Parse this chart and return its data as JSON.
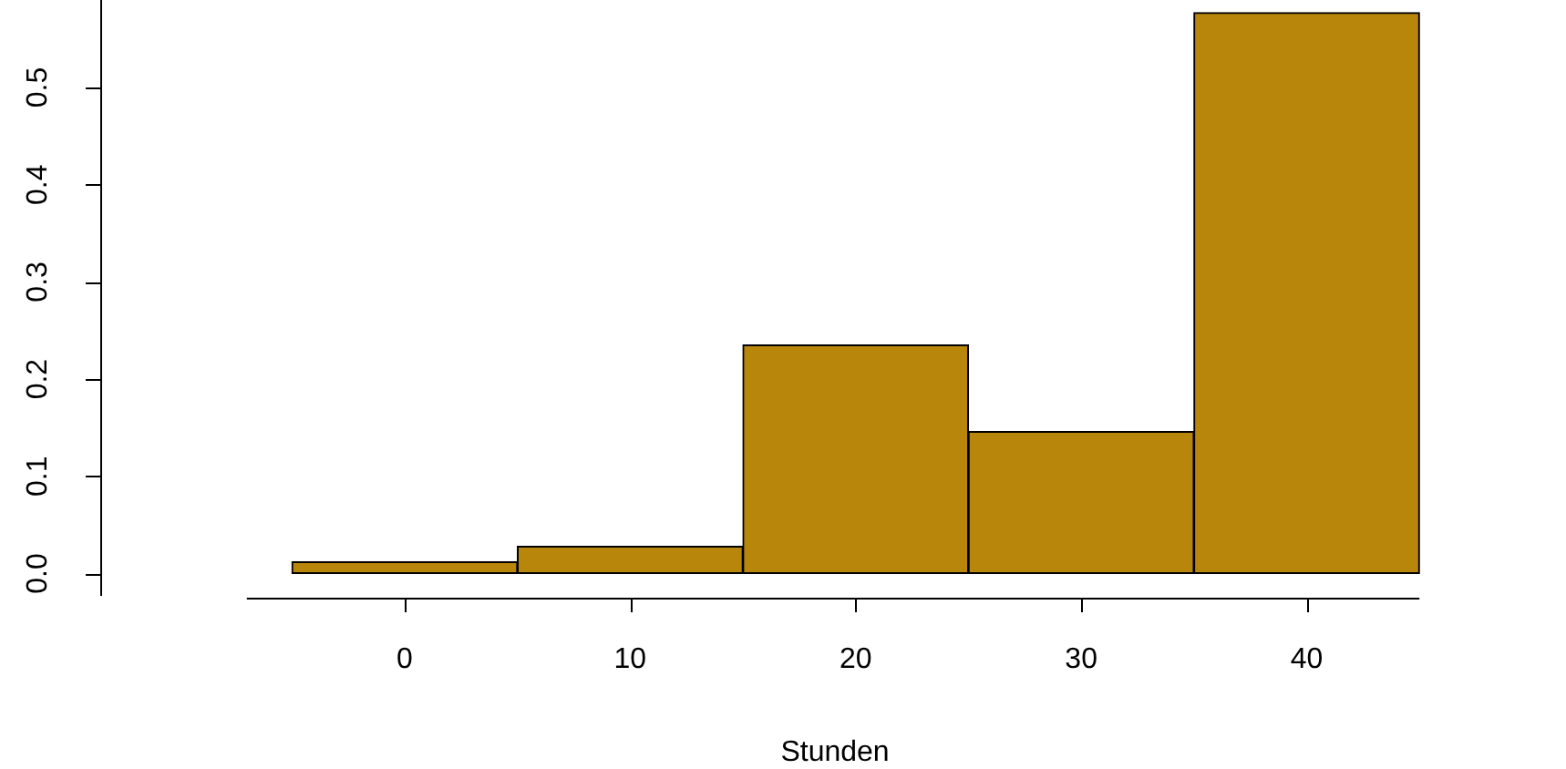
{
  "chart_data": {
    "type": "histogram",
    "xlabel": "Stunden",
    "bins": [
      -5,
      5,
      15,
      25,
      35,
      45
    ],
    "values": [
      0.012,
      0.028,
      0.235,
      0.146,
      0.577
    ],
    "color": "#b8860b",
    "xlim": [
      -7,
      45
    ],
    "ylim": [
      -0.023,
      0.59
    ],
    "xticks": [
      0,
      10,
      20,
      30,
      40
    ],
    "yticks": [
      {
        "value": 0,
        "label": "0.0"
      },
      {
        "value": 0.1,
        "label": "0.1"
      },
      {
        "value": 0.2,
        "label": "0.2"
      },
      {
        "value": 0.3,
        "label": "0.3"
      },
      {
        "value": 0.4,
        "label": "0.4"
      },
      {
        "value": 0.5,
        "label": "0.5"
      }
    ],
    "legend": false
  }
}
